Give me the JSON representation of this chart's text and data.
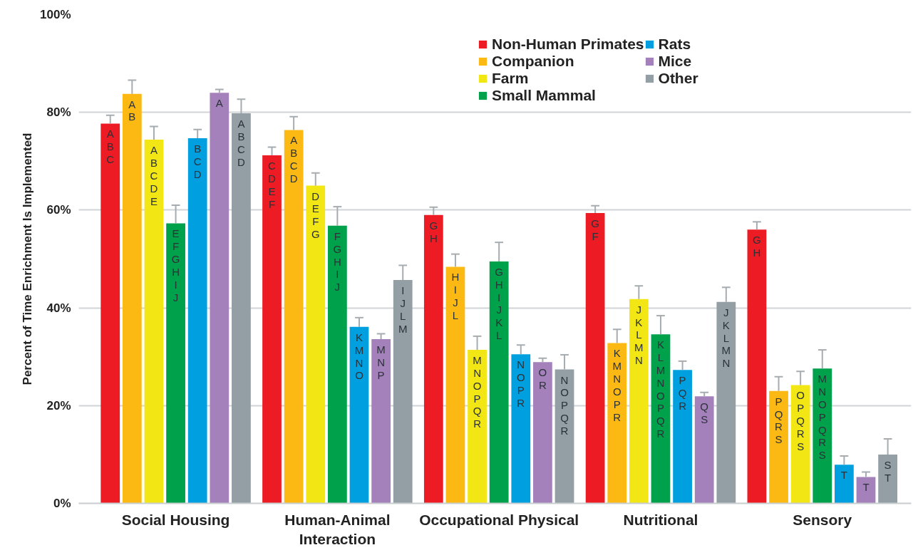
{
  "chart_data": {
    "type": "bar",
    "ylabel": "Percent of Time Enrichment Is Implemented",
    "categories": [
      "Social Housing",
      "Human-Animal Interaction",
      "Occupational Physical",
      "Nutritional",
      "Sensory"
    ],
    "ylim": [
      0,
      100
    ],
    "yticks": [
      {
        "value": 0,
        "label": "0%"
      },
      {
        "value": 20,
        "label": "20%"
      },
      {
        "value": 40,
        "label": "40%"
      },
      {
        "value": 60,
        "label": "60%"
      },
      {
        "value": 80,
        "label": "80%"
      },
      {
        "value": 100,
        "label": "100%"
      }
    ],
    "grid": "y",
    "legend": "top right",
    "series": [
      {
        "name": "Non-Human Primates",
        "color": "#ed1c24",
        "values": [
          77.7,
          71.2,
          59.0,
          59.4,
          56.0
        ],
        "errors": [
          [
            77.7,
            79.4
          ],
          [
            71.2,
            72.9
          ],
          [
            59.0,
            60.6
          ],
          [
            59.4,
            60.9
          ],
          [
            56.0,
            57.6
          ]
        ],
        "value_labels": [
          "ABC",
          "CDEF",
          "GH",
          "GF",
          "GH"
        ]
      },
      {
        "name": "Companion",
        "color": "#fdb913",
        "values": [
          83.8,
          76.4,
          48.4,
          32.8,
          23.0
        ],
        "errors": [
          [
            83.8,
            86.6
          ],
          [
            76.4,
            79.1
          ],
          [
            48.4,
            51.0
          ],
          [
            32.8,
            35.6
          ],
          [
            23.0,
            25.9
          ]
        ],
        "value_labels": [
          "AB",
          "ABCD",
          "HIJL",
          "KMNOPR",
          "PQRS"
        ]
      },
      {
        "name": "Farm",
        "color": "#f2e614",
        "values": [
          74.4,
          65.0,
          31.4,
          41.8,
          24.2
        ],
        "errors": [
          [
            74.4,
            77.1
          ],
          [
            65.0,
            67.6
          ],
          [
            31.4,
            34.2
          ],
          [
            41.8,
            44.5
          ],
          [
            24.2,
            27.0
          ]
        ],
        "value_labels": [
          "ABCDE",
          "DEFG",
          "MNOPQR",
          "JKLMN",
          "OPQRS"
        ]
      },
      {
        "name": "Small Mammal",
        "color": "#00a14b",
        "values": [
          57.3,
          56.8,
          49.5,
          34.6,
          27.6
        ],
        "errors": [
          [
            57.3,
            61.0
          ],
          [
            56.8,
            60.7
          ],
          [
            49.5,
            53.4
          ],
          [
            34.6,
            38.4
          ],
          [
            27.6,
            31.4
          ]
        ],
        "value_labels": [
          "EFGHIJ",
          "FGHIJ",
          "GHIJKL",
          "KLMNOPQR",
          "MNOPQRS"
        ]
      },
      {
        "name": "Rats",
        "color": "#00a0e0",
        "values": [
          74.7,
          36.1,
          30.5,
          27.3,
          7.9
        ],
        "errors": [
          [
            74.7,
            76.5
          ],
          [
            36.1,
            38.0
          ],
          [
            30.5,
            32.4
          ],
          [
            27.3,
            29.1
          ],
          [
            7.9,
            9.7
          ]
        ],
        "value_labels": [
          "BCD",
          "KMNO",
          "NOPR",
          "PQR",
          "T"
        ]
      },
      {
        "name": "Mice",
        "color": "#a481bb",
        "values": [
          84.0,
          33.6,
          28.9,
          21.9,
          5.4
        ],
        "errors": [
          [
            84.0,
            84.7
          ],
          [
            33.6,
            34.7
          ],
          [
            28.9,
            29.7
          ],
          [
            21.9,
            22.7
          ],
          [
            5.4,
            6.4
          ]
        ],
        "value_labels": [
          "A",
          "MNP",
          "OR",
          "QS",
          "T"
        ]
      },
      {
        "name": "Other",
        "color": "#939ea5",
        "values": [
          79.8,
          45.7,
          27.4,
          41.2,
          10.0
        ],
        "errors": [
          [
            79.8,
            82.7
          ],
          [
            45.7,
            48.7
          ],
          [
            27.4,
            30.4
          ],
          [
            41.2,
            44.2
          ],
          [
            10.0,
            13.2
          ]
        ],
        "value_labels": [
          "ABCD",
          "IJLM",
          "NOPQR",
          "JKLMN",
          "ST"
        ]
      }
    ]
  }
}
